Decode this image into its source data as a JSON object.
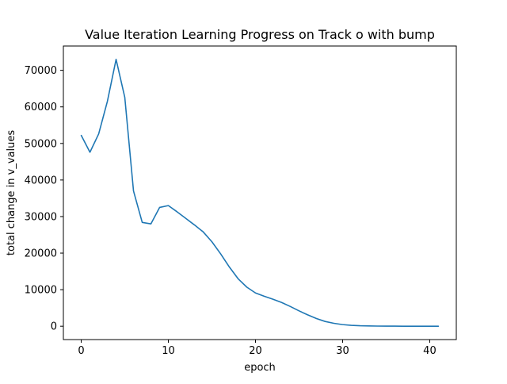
{
  "chart_data": {
    "type": "line",
    "title": "Value Iteration Learning Progress on Track o with bump",
    "xlabel": "epoch",
    "ylabel": "total change in v_values",
    "xlim": [
      -2.05,
      43.05
    ],
    "ylim": [
      -3650,
      76650
    ],
    "xticks": [
      0,
      10,
      20,
      30,
      40
    ],
    "yticks": [
      0,
      10000,
      20000,
      30000,
      40000,
      50000,
      60000,
      70000
    ],
    "x": [
      0,
      1,
      2,
      3,
      4,
      5,
      6,
      7,
      8,
      9,
      10,
      11,
      12,
      13,
      14,
      15,
      16,
      17,
      18,
      19,
      20,
      21,
      22,
      23,
      24,
      25,
      26,
      27,
      28,
      29,
      30,
      31,
      32,
      33,
      34,
      35,
      36,
      37,
      38,
      39,
      40,
      41
    ],
    "series": [
      {
        "color": "#1f77b4",
        "values": [
          52200,
          47600,
          52600,
          61500,
          73000,
          62600,
          37000,
          28400,
          28000,
          32500,
          33000,
          31300,
          29500,
          27700,
          25800,
          23100,
          19800,
          16200,
          13000,
          10700,
          9100,
          8200,
          7400,
          6500,
          5400,
          4200,
          3100,
          2100,
          1300,
          800,
          450,
          250,
          130,
          70,
          40,
          25,
          15,
          10,
          6,
          4,
          3,
          2
        ]
      }
    ],
    "grid": false,
    "legend": false
  }
}
